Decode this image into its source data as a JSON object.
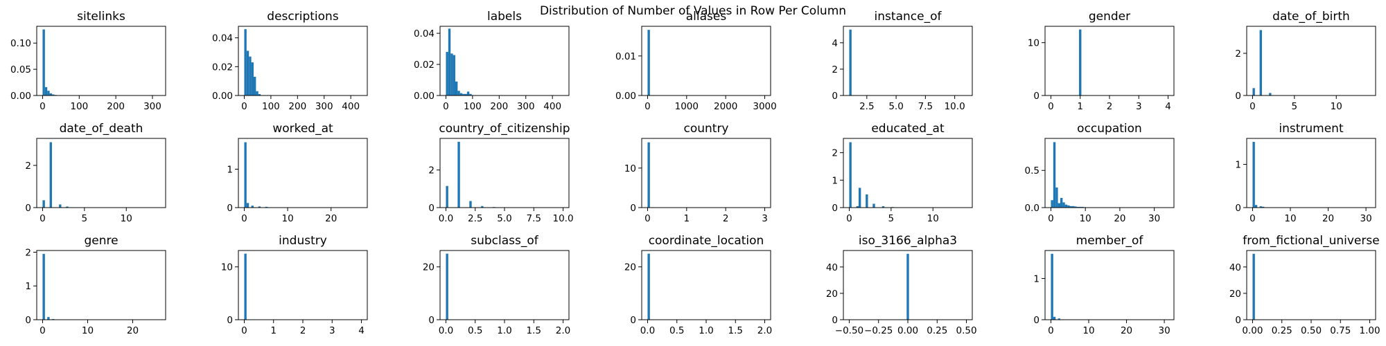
{
  "figure": {
    "suptitle": "Distribution of Number of Values in Row Per Column",
    "bar_color": "#1f77b4"
  },
  "chart_data": [
    {
      "type": "bar",
      "title": "sitelinks",
      "xlim": [
        -16,
        336
      ],
      "ylim": [
        0,
        0.132
      ],
      "xticks": [
        0,
        100,
        200,
        300
      ],
      "yticks": [
        0.0,
        0.05,
        0.1
      ],
      "yticklabels": [
        "0.00",
        "0.05",
        "0.10"
      ],
      "bins": [
        [
          0,
          6.4,
          0.126
        ],
        [
          6.4,
          12.8,
          0.016
        ],
        [
          12.8,
          19.2,
          0.009
        ],
        [
          19.2,
          25.6,
          0.004
        ],
        [
          25.6,
          32,
          0.002
        ],
        [
          32,
          38.4,
          0.001
        ],
        [
          38.4,
          44.8,
          0.0005
        ]
      ]
    },
    {
      "type": "bar",
      "title": "descriptions",
      "xlim": [
        -22,
        462
      ],
      "ylim": [
        0,
        0.048
      ],
      "xticks": [
        0,
        100,
        200,
        300,
        400
      ],
      "yticks": [
        0.0,
        0.02,
        0.04
      ],
      "yticklabels": [
        "0.00",
        "0.02",
        "0.04"
      ],
      "bins": [
        [
          0,
          8.8,
          0.046
        ],
        [
          8.8,
          17.6,
          0.031
        ],
        [
          17.6,
          26.4,
          0.027
        ],
        [
          26.4,
          35.2,
          0.023
        ],
        [
          35.2,
          44,
          0.013
        ],
        [
          44,
          52.8,
          0.003
        ],
        [
          52.8,
          61.6,
          0.001
        ]
      ]
    },
    {
      "type": "bar",
      "title": "labels",
      "xlim": [
        -22,
        462
      ],
      "ylim": [
        0,
        0.0445
      ],
      "xticks": [
        0,
        100,
        200,
        300,
        400
      ],
      "yticks": [
        0.0,
        0.02,
        0.04
      ],
      "yticklabels": [
        "0.00",
        "0.02",
        "0.04"
      ],
      "bins": [
        [
          0,
          8.8,
          0.028
        ],
        [
          8.8,
          17.6,
          0.043
        ],
        [
          17.6,
          26.4,
          0.027
        ],
        [
          26.4,
          35.2,
          0.026
        ],
        [
          35.2,
          44,
          0.009
        ],
        [
          44,
          52.8,
          0.003
        ],
        [
          52.8,
          61.6,
          0.0015
        ],
        [
          61.6,
          70.4,
          0.001
        ],
        [
          70.4,
          79.2,
          0.001
        ],
        [
          79.2,
          88,
          0.0025
        ],
        [
          88,
          96.8,
          0.001
        ]
      ]
    },
    {
      "type": "bar",
      "title": "aliases",
      "xlim": [
        -150,
        3150
      ],
      "ylim": [
        0,
        0.0175
      ],
      "xticks": [
        0,
        1000,
        2000,
        3000
      ],
      "yticks": [
        0.0,
        0.01
      ],
      "yticklabels": [
        "0.00",
        "0.01"
      ],
      "bins": [
        [
          0,
          60,
          0.0166
        ]
      ]
    },
    {
      "type": "bar",
      "title": "instance_of",
      "xlim": [
        0.5,
        11.5
      ],
      "ylim": [
        0,
        5.25
      ],
      "xticks": [
        2.5,
        5.0,
        7.5,
        10.0
      ],
      "xticklabels": [
        "2.5",
        "5.0",
        "7.5",
        "10.0"
      ],
      "yticks": [
        0,
        2,
        4
      ],
      "bins": [
        [
          1,
          1.2,
          5.0
        ]
      ]
    },
    {
      "type": "bar",
      "title": "gender",
      "xlim": [
        -0.2,
        4.2
      ],
      "ylim": [
        0,
        13.1
      ],
      "xticks": [
        0,
        1,
        2,
        3,
        4
      ],
      "yticks": [
        0,
        10
      ],
      "bins": [
        [
          0.96,
          1.04,
          12.5
        ]
      ]
    },
    {
      "type": "bar",
      "title": "date_of_birth",
      "xlim": [
        -0.7,
        14.7
      ],
      "ylim": [
        0,
        3.28
      ],
      "xticks": [
        0,
        5,
        10
      ],
      "yticks": [
        0,
        2
      ],
      "bins": [
        [
          0,
          0.28,
          0.35
        ],
        [
          0.84,
          1.12,
          3.1
        ],
        [
          1.96,
          2.24,
          0.12
        ]
      ]
    },
    {
      "type": "bar",
      "title": "date_of_death",
      "xlim": [
        -0.7,
        14.7
      ],
      "ylim": [
        0,
        3.28
      ],
      "xticks": [
        0,
        5,
        10
      ],
      "yticks": [
        0,
        2
      ],
      "bins": [
        [
          0,
          0.28,
          0.35
        ],
        [
          0.84,
          1.12,
          3.1
        ],
        [
          1.96,
          2.24,
          0.15
        ],
        [
          2.8,
          3.08,
          0.05
        ]
      ]
    },
    {
      "type": "bar",
      "title": "worked_at",
      "xlim": [
        -1.35,
        28.35
      ],
      "ylim": [
        0,
        1.8
      ],
      "xticks": [
        0,
        10,
        20
      ],
      "yticks": [
        0,
        1
      ],
      "bins": [
        [
          0,
          0.54,
          1.7
        ],
        [
          0.54,
          1.08,
          0.12
        ],
        [
          1.62,
          2.16,
          0.05
        ],
        [
          3.24,
          3.78,
          0.03
        ],
        [
          4.86,
          5.4,
          0.02
        ]
      ]
    },
    {
      "type": "bar",
      "title": "country_of_citizenship",
      "xlim": [
        -0.5,
        10.5
      ],
      "ylim": [
        0,
        3.68
      ],
      "xticks": [
        0.0,
        2.5,
        5.0,
        7.5,
        10.0
      ],
      "xticklabels": [
        "0.0",
        "2.5",
        "5.0",
        "7.5",
        "10.0"
      ],
      "yticks": [
        0,
        2
      ],
      "bins": [
        [
          0,
          0.2,
          1.15
        ],
        [
          1.0,
          1.2,
          3.5
        ],
        [
          2.0,
          2.2,
          0.35
        ],
        [
          3.0,
          3.2,
          0.08
        ],
        [
          4.0,
          4.2,
          0.03
        ]
      ]
    },
    {
      "type": "bar",
      "title": "country",
      "xlim": [
        -0.15,
        3.15
      ],
      "ylim": [
        0,
        17.5
      ],
      "xticks": [
        0,
        1,
        2,
        3
      ],
      "yticks": [
        0,
        10
      ],
      "bins": [
        [
          0,
          0.06,
          16.5
        ]
      ]
    },
    {
      "type": "bar",
      "title": "educated_at",
      "xlim": [
        -0.7,
        14.7
      ],
      "ylim": [
        0,
        2.52
      ],
      "xticks": [
        0,
        5,
        10
      ],
      "yticks": [
        0,
        1,
        2
      ],
      "bins": [
        [
          0,
          0.28,
          2.38
        ],
        [
          0.84,
          1.12,
          0.05
        ],
        [
          1.12,
          1.4,
          0.72
        ],
        [
          1.96,
          2.24,
          0.48
        ],
        [
          2.8,
          3.08,
          0.14
        ],
        [
          3.92,
          4.2,
          0.05
        ],
        [
          5.04,
          5.32,
          0.02
        ]
      ]
    },
    {
      "type": "bar",
      "title": "occupation",
      "xlim": [
        -1.7,
        35.7
      ],
      "ylim": [
        0,
        0.93
      ],
      "xticks": [
        0,
        10,
        20,
        30
      ],
      "yticks": [
        0.0,
        0.5
      ],
      "yticklabels": [
        "0.0",
        "0.5"
      ],
      "bins": [
        [
          0,
          0.68,
          0.1
        ],
        [
          0.68,
          1.36,
          0.88
        ],
        [
          1.36,
          2.04,
          0.27
        ],
        [
          2.04,
          2.72,
          0.06
        ],
        [
          2.72,
          3.4,
          0.13
        ],
        [
          3.4,
          4.08,
          0.07
        ],
        [
          4.08,
          4.76,
          0.04
        ],
        [
          4.76,
          5.44,
          0.03
        ],
        [
          5.44,
          6.12,
          0.02
        ],
        [
          6.12,
          6.8,
          0.02
        ],
        [
          6.8,
          7.48,
          0.015
        ],
        [
          7.48,
          8.16,
          0.01
        ],
        [
          8.16,
          8.84,
          0.01
        ],
        [
          8.84,
          9.52,
          0.01
        ],
        [
          9.52,
          10.2,
          0.006
        ]
      ]
    },
    {
      "type": "bar",
      "title": "instrument",
      "xlim": [
        -1.55,
        32.55
      ],
      "ylim": [
        0,
        1.6
      ],
      "xticks": [
        0,
        10,
        20,
        30
      ],
      "yticks": [
        0,
        1
      ],
      "bins": [
        [
          0,
          0.62,
          1.52
        ],
        [
          0.62,
          1.24,
          0.06
        ],
        [
          1.86,
          2.48,
          0.03
        ],
        [
          2.48,
          3.1,
          0.02
        ]
      ]
    },
    {
      "type": "bar",
      "title": "genre",
      "xlim": [
        -1.3,
        27.3
      ],
      "ylim": [
        0,
        2.05
      ],
      "xticks": [
        0,
        10,
        20
      ],
      "yticks": [
        0,
        1,
        2
      ],
      "bins": [
        [
          0,
          0.52,
          1.95
        ],
        [
          1.04,
          1.56,
          0.08
        ],
        [
          2.08,
          2.6,
          0.02
        ]
      ]
    },
    {
      "type": "bar",
      "title": "industry",
      "xlim": [
        -0.2,
        4.2
      ],
      "ylim": [
        0,
        13.1
      ],
      "xticks": [
        0,
        1,
        2,
        3,
        4
      ],
      "yticks": [
        0,
        10
      ],
      "bins": [
        [
          0,
          0.08,
          12.5
        ]
      ]
    },
    {
      "type": "bar",
      "title": "subclass_of",
      "xlim": [
        -0.1,
        2.1
      ],
      "ylim": [
        0,
        26.2
      ],
      "xticks": [
        0.0,
        0.5,
        1.0,
        1.5,
        2.0
      ],
      "xticklabels": [
        "0.0",
        "0.5",
        "1.0",
        "1.5",
        "2.0"
      ],
      "yticks": [
        0,
        20
      ],
      "bins": [
        [
          0,
          0.04,
          25.0
        ]
      ]
    },
    {
      "type": "bar",
      "title": "coordinate_location",
      "xlim": [
        -0.1,
        2.1
      ],
      "ylim": [
        0,
        26.2
      ],
      "xticks": [
        0.0,
        0.5,
        1.0,
        1.5,
        2.0
      ],
      "xticklabels": [
        "0.0",
        "0.5",
        "1.0",
        "1.5",
        "2.0"
      ],
      "yticks": [
        0,
        20
      ],
      "bins": [
        [
          0,
          0.04,
          25.0
        ]
      ]
    },
    {
      "type": "bar",
      "title": "iso_3166_alpha3",
      "xlim": [
        -0.55,
        0.55
      ],
      "ylim": [
        0,
        52.5
      ],
      "xticks": [
        -0.5,
        -0.25,
        0.0,
        0.25,
        0.5
      ],
      "xticklabels": [
        "−0.50",
        "−0.25",
        "0.00",
        "0.25",
        "0.50"
      ],
      "yticks": [
        0,
        20,
        40
      ],
      "bins": [
        [
          -0.01,
          0.01,
          50.0
        ]
      ]
    },
    {
      "type": "bar",
      "title": "member_of",
      "xlim": [
        -1.55,
        32.55
      ],
      "ylim": [
        0,
        1.68
      ],
      "xticks": [
        0,
        10,
        20,
        30
      ],
      "yticks": [
        0,
        1
      ],
      "bins": [
        [
          0,
          0.62,
          1.6
        ],
        [
          0.62,
          1.24,
          0.07
        ],
        [
          1.86,
          2.48,
          0.03
        ]
      ]
    },
    {
      "type": "bar",
      "title": "from_fictional_universe",
      "xlim": [
        -0.05,
        1.05
      ],
      "ylim": [
        0,
        52.5
      ],
      "xticks": [
        0.0,
        0.25,
        0.5,
        0.75,
        1.0
      ],
      "xticklabels": [
        "0.00",
        "0.25",
        "0.50",
        "0.75",
        "1.00"
      ],
      "yticks": [
        0,
        20,
        40
      ],
      "bins": [
        [
          0,
          0.02,
          50.0
        ]
      ]
    }
  ]
}
